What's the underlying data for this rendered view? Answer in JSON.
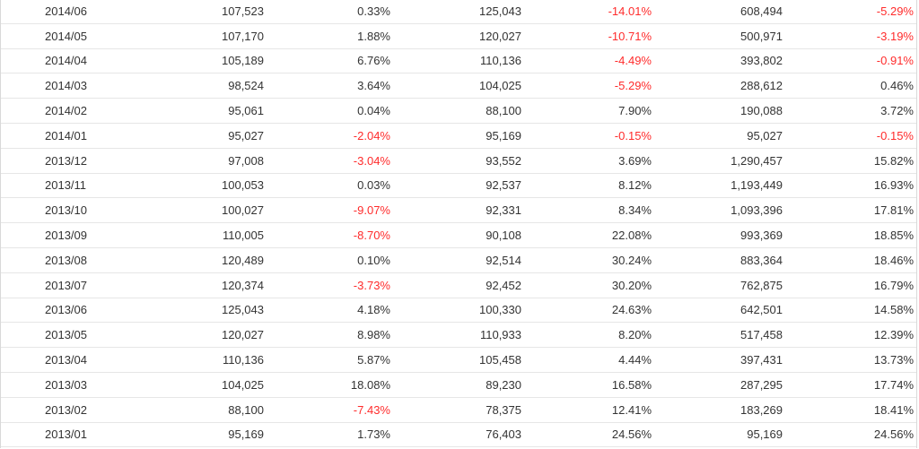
{
  "table": {
    "rows": [
      {
        "date": "2014/06",
        "v1": "107,523",
        "p1": "0.33%",
        "v2": "125,043",
        "p2": "-14.01%",
        "v3": "608,494",
        "p3": "-5.29%"
      },
      {
        "date": "2014/05",
        "v1": "107,170",
        "p1": "1.88%",
        "v2": "120,027",
        "p2": "-10.71%",
        "v3": "500,971",
        "p3": "-3.19%"
      },
      {
        "date": "2014/04",
        "v1": "105,189",
        "p1": "6.76%",
        "v2": "110,136",
        "p2": "-4.49%",
        "v3": "393,802",
        "p3": "-0.91%"
      },
      {
        "date": "2014/03",
        "v1": "98,524",
        "p1": "3.64%",
        "v2": "104,025",
        "p2": "-5.29%",
        "v3": "288,612",
        "p3": "0.46%"
      },
      {
        "date": "2014/02",
        "v1": "95,061",
        "p1": "0.04%",
        "v2": "88,100",
        "p2": "7.90%",
        "v3": "190,088",
        "p3": "3.72%"
      },
      {
        "date": "2014/01",
        "v1": "95,027",
        "p1": "-2.04%",
        "v2": "95,169",
        "p2": "-0.15%",
        "v3": "95,027",
        "p3": "-0.15%"
      },
      {
        "date": "2013/12",
        "v1": "97,008",
        "p1": "-3.04%",
        "v2": "93,552",
        "p2": "3.69%",
        "v3": "1,290,457",
        "p3": "15.82%"
      },
      {
        "date": "2013/11",
        "v1": "100,053",
        "p1": "0.03%",
        "v2": "92,537",
        "p2": "8.12%",
        "v3": "1,193,449",
        "p3": "16.93%"
      },
      {
        "date": "2013/10",
        "v1": "100,027",
        "p1": "-9.07%",
        "v2": "92,331",
        "p2": "8.34%",
        "v3": "1,093,396",
        "p3": "17.81%"
      },
      {
        "date": "2013/09",
        "v1": "110,005",
        "p1": "-8.70%",
        "v2": "90,108",
        "p2": "22.08%",
        "v3": "993,369",
        "p3": "18.85%"
      },
      {
        "date": "2013/08",
        "v1": "120,489",
        "p1": "0.10%",
        "v2": "92,514",
        "p2": "30.24%",
        "v3": "883,364",
        "p3": "18.46%"
      },
      {
        "date": "2013/07",
        "v1": "120,374",
        "p1": "-3.73%",
        "v2": "92,452",
        "p2": "30.20%",
        "v3": "762,875",
        "p3": "16.79%"
      },
      {
        "date": "2013/06",
        "v1": "125,043",
        "p1": "4.18%",
        "v2": "100,330",
        "p2": "24.63%",
        "v3": "642,501",
        "p3": "14.58%"
      },
      {
        "date": "2013/05",
        "v1": "120,027",
        "p1": "8.98%",
        "v2": "110,933",
        "p2": "8.20%",
        "v3": "517,458",
        "p3": "12.39%"
      },
      {
        "date": "2013/04",
        "v1": "110,136",
        "p1": "5.87%",
        "v2": "105,458",
        "p2": "4.44%",
        "v3": "397,431",
        "p3": "13.73%"
      },
      {
        "date": "2013/03",
        "v1": "104,025",
        "p1": "18.08%",
        "v2": "89,230",
        "p2": "16.58%",
        "v3": "287,295",
        "p3": "17.74%"
      },
      {
        "date": "2013/02",
        "v1": "88,100",
        "p1": "-7.43%",
        "v2": "78,375",
        "p2": "12.41%",
        "v3": "183,269",
        "p3": "18.41%"
      },
      {
        "date": "2013/01",
        "v1": "95,169",
        "p1": "1.73%",
        "v2": "76,403",
        "p2": "24.56%",
        "v3": "95,169",
        "p3": "24.56%"
      }
    ]
  },
  "colors": {
    "negative": "#ff2b2b",
    "text": "#333333",
    "row_divider": "#e6e6e6"
  }
}
